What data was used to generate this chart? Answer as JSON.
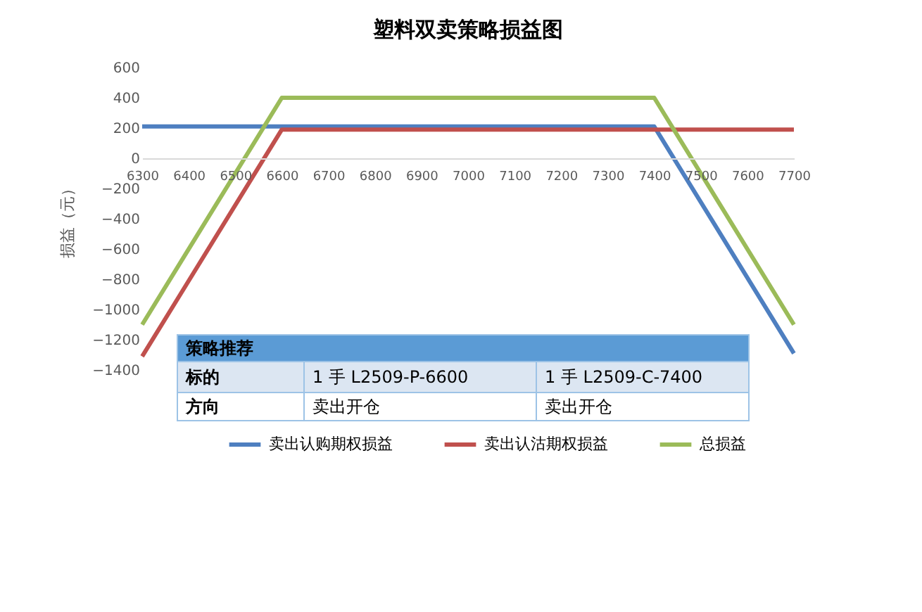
{
  "chart_data": {
    "type": "line",
    "title": "塑料双卖策略损益图",
    "ylabel": "损益（元）",
    "xlim": [
      6300,
      7700
    ],
    "xticks": [
      6300,
      6400,
      6500,
      6600,
      6700,
      6800,
      6900,
      7000,
      7100,
      7200,
      7300,
      7400,
      7500,
      7600,
      7700
    ],
    "ylim": [
      -1400,
      600
    ],
    "yticks": [
      -1400,
      -1200,
      -1000,
      -800,
      -600,
      -400,
      -200,
      0,
      200,
      400,
      600
    ],
    "series": [
      {
        "name": "卖出认购期权损益",
        "color": "#4e7fc0",
        "x": [
          6300,
          7400,
          7700
        ],
        "values": [
          210,
          210,
          -1290
        ]
      },
      {
        "name": "卖出认沽期权损益",
        "color": "#c0504d",
        "x": [
          6300,
          6600,
          7700
        ],
        "values": [
          -1310,
          190,
          190
        ]
      },
      {
        "name": "总损益",
        "color": "#9bbb59",
        "x": [
          6300,
          6600,
          7400,
          7700
        ],
        "values": [
          -1100,
          400,
          400,
          -1100
        ]
      }
    ],
    "annotations": [
      "策略推荐",
      "标的",
      "1 手 L2509-P-6600",
      "1 手 L2509-C-7400",
      "方向",
      "卖出开仓",
      "卖出开仓"
    ],
    "legend": "bottom",
    "grid": false,
    "marker": "none",
    "line_style": "solid"
  }
}
